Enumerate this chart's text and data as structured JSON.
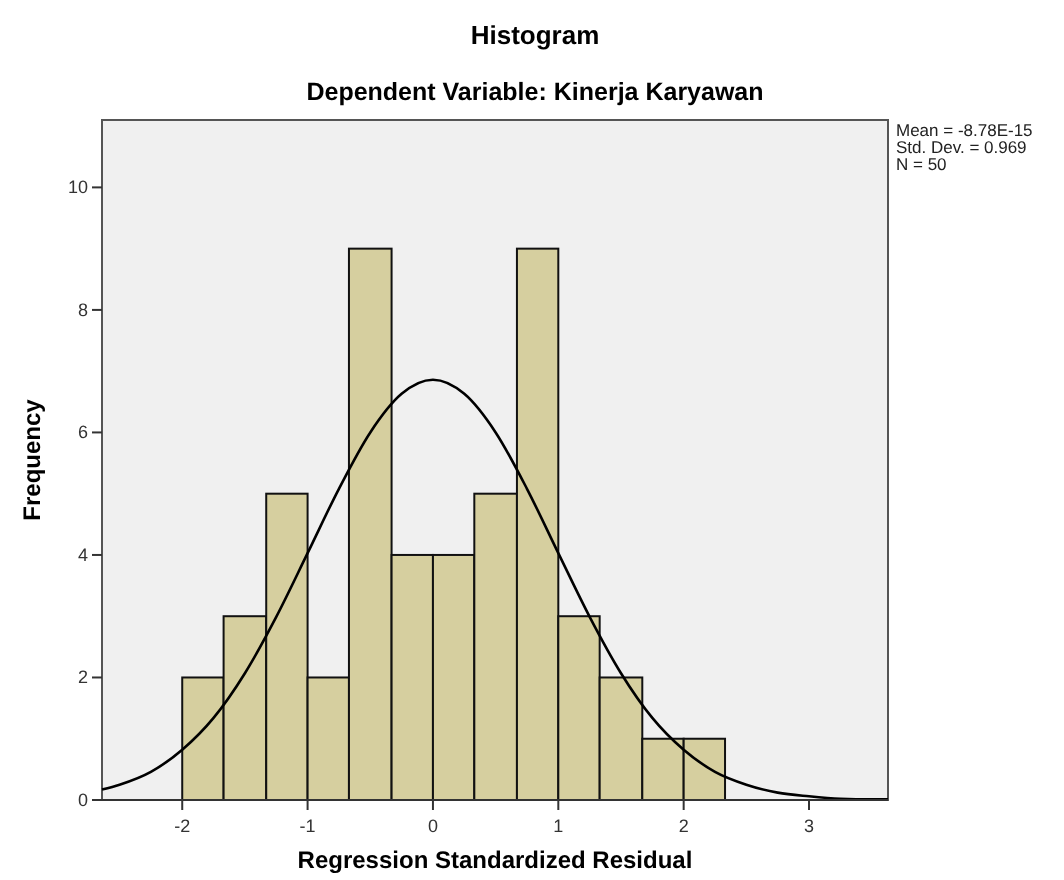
{
  "chart_data": {
    "type": "histogram",
    "title": "Histogram",
    "subtitle": "Dependent Variable: Kinerja Karyawan",
    "xlabel": "Regression Standardized Residual",
    "ylabel": "Frequency",
    "xlim": [
      -2.64,
      3.63
    ],
    "xticks": [
      -2,
      -1,
      0,
      1,
      2,
      3
    ],
    "ylim": [
      0,
      11.1
    ],
    "yticks": [
      0,
      2,
      4,
      6,
      8,
      10
    ],
    "grid": false,
    "annotations": [
      "Mean = -8.78E-15",
      "Std. Dev. = 0.969",
      "N = 50"
    ],
    "series": [
      {
        "color": "#d6cf9f",
        "bins": [
          -2,
          -1.67,
          -1.33,
          -1,
          -0.67,
          -0.33,
          0,
          0.33,
          0.67,
          1,
          1.33,
          1.67,
          2,
          2.33
        ],
        "values": [
          2,
          3,
          5,
          2,
          9,
          4,
          4,
          5,
          9,
          3,
          2,
          1,
          1
        ]
      },
      {
        "type": "line",
        "color": "#000000",
        "x": [
          -2.64,
          -2.5,
          -2.25,
          -2,
          -1.75,
          -1.5,
          -1.25,
          -1,
          -0.75,
          -0.5,
          -0.25,
          0,
          0.25,
          0.5,
          0.75,
          1,
          1.25,
          1.5,
          1.75,
          2,
          2.25,
          2.5,
          2.75,
          3,
          3.25,
          3.5,
          3.63
        ],
        "values": [
          0.17,
          0.25,
          0.46,
          0.82,
          1.34,
          2.07,
          2.99,
          4.03,
          5.08,
          6.0,
          6.63,
          6.86,
          6.63,
          6.0,
          5.08,
          4.03,
          2.99,
          2.07,
          1.34,
          0.82,
          0.46,
          0.25,
          0.12,
          0.06,
          0.02,
          0.01,
          0.01
        ]
      }
    ]
  }
}
